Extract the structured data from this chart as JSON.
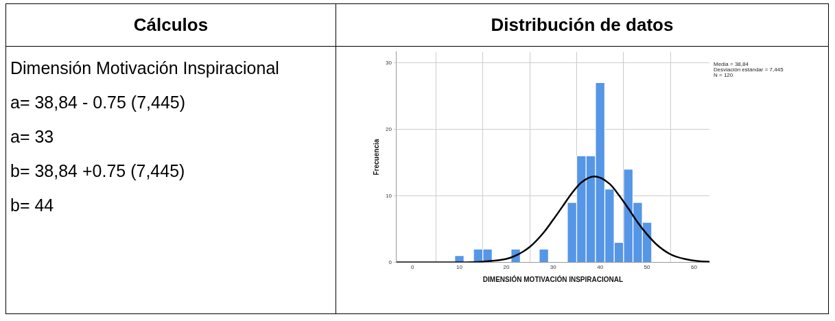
{
  "chart_data": [
    {
      "type": "other",
      "title": "Cálculos",
      "annotations": [
        "Dimensión Motivación Inspiracional",
        "a= 38,84 - 0.75 (7,445)",
        "a= 33",
        "b= 38,84 +0.75 (7,445)",
        "b= 44"
      ]
    },
    {
      "type": "histogram",
      "title": "Distribución de datos",
      "xlabel": "DIMENSIÓN MOTIVACIÓN INSPIRACIONAL",
      "ylabel": "Frecuencia",
      "bins": [
        9,
        11,
        13,
        15,
        17,
        19,
        21,
        23,
        25,
        27,
        29,
        31,
        33,
        35,
        37,
        39,
        41,
        43,
        45,
        47,
        49,
        51
      ],
      "values": [
        1,
        0,
        2,
        2,
        0,
        0,
        2,
        0,
        0,
        2,
        0,
        0,
        9,
        16,
        16,
        27,
        11,
        3,
        14,
        9,
        6
      ],
      "color": "#5596e6",
      "series": [
        {
          "type": "line",
          "color": "#000000",
          "x": [
            -3.4,
            0,
            10,
            15,
            20,
            22,
            25,
            28,
            30,
            32,
            34,
            36,
            38.84,
            42,
            44,
            46,
            48,
            50,
            52,
            55,
            58,
            63,
            63.3
          ],
          "values": [
            0,
            0,
            0,
            0.1,
            0.5,
            1,
            2.3,
            4.5,
            6.4,
            8.4,
            10.4,
            12,
            12.9,
            11.8,
            10.1,
            8.1,
            6,
            4.2,
            2.7,
            1.2,
            0.5,
            0.1,
            0.1
          ]
        }
      ],
      "xlim": [
        -3.4,
        63.3
      ],
      "xticks": [
        0,
        10,
        20,
        30,
        40,
        50,
        60
      ],
      "ylim": [
        0,
        31.6
      ],
      "yticks": [
        0,
        10,
        20,
        30
      ],
      "grid": true,
      "legend": false,
      "annotations": [
        "Media = 38,84",
        "Desviación estándar = 7,445",
        "N = 120"
      ]
    }
  ]
}
